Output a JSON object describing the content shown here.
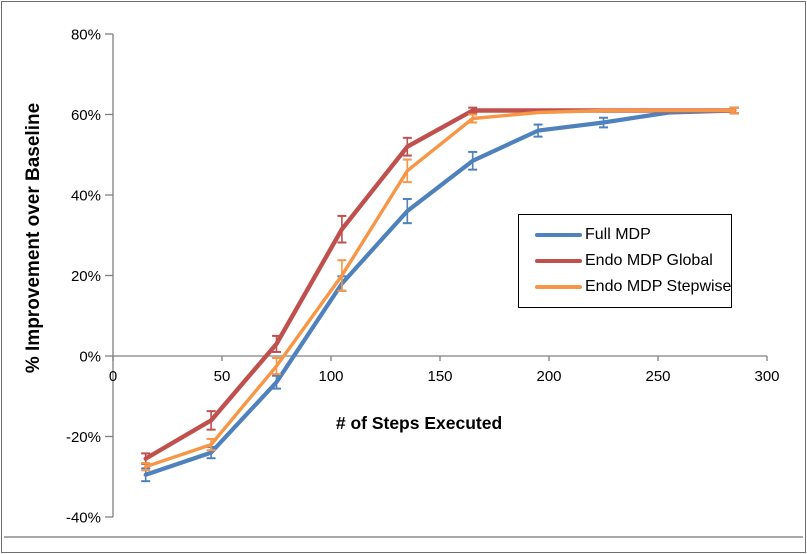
{
  "chart_data": {
    "type": "line",
    "title": "",
    "xlabel": "# of Steps Executed",
    "ylabel": "% Improvement over Baseline",
    "xlim": [
      0,
      300
    ],
    "ylim": [
      -40,
      80
    ],
    "grid": false,
    "legend_position": "middle-right",
    "x_ticks": [
      0,
      50,
      100,
      150,
      200,
      250,
      300
    ],
    "x_tick_labels": [
      "0",
      "50",
      "100",
      "150",
      "200",
      "250",
      "300"
    ],
    "y_ticks": [
      80,
      60,
      40,
      20,
      0,
      -20,
      -40
    ],
    "y_tick_labels": [
      "80%",
      "60%",
      "40%",
      "20%",
      "0%",
      "-20%",
      "-40%"
    ],
    "x": [
      15,
      45,
      75,
      105,
      135,
      165,
      195,
      225,
      255,
      285
    ],
    "series": [
      {
        "name": "Full MDP",
        "color": "#4F81BD",
        "values": [
          -29.5,
          -24,
          -6.5,
          18,
          36,
          48.5,
          56,
          58,
          60.5,
          61
        ],
        "errors": [
          1.6,
          1.4,
          1.6,
          1.8,
          3,
          2.2,
          1.5,
          1.2,
          0,
          0.7
        ]
      },
      {
        "name": "Endo MDP Global",
        "color": "#C0504D",
        "values": [
          -25.5,
          -16,
          3,
          31.5,
          52,
          61,
          61,
          61,
          61,
          61
        ],
        "errors": [
          1.3,
          2.3,
          2,
          3.3,
          2.2,
          0.7,
          0,
          0,
          0,
          0.7
        ]
      },
      {
        "name": "Endo MDP Stepwise",
        "color": "#F79646",
        "values": [
          -27.5,
          -22,
          -2.5,
          20,
          46,
          59,
          60.5,
          61,
          61,
          61
        ],
        "errors": [
          0.9,
          1.4,
          2,
          3.8,
          2.8,
          1,
          0,
          0,
          0,
          0.7
        ]
      }
    ]
  }
}
